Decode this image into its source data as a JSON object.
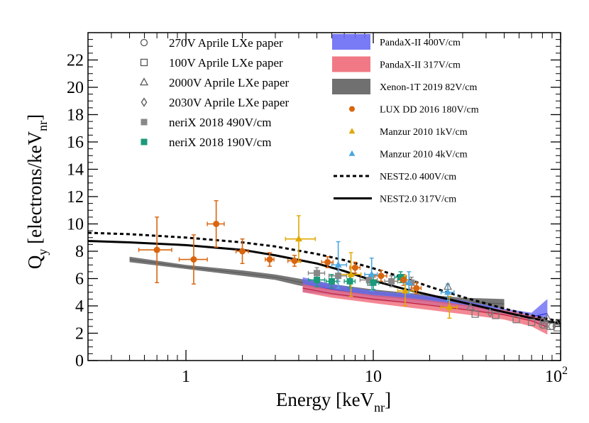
{
  "chart_data": {
    "type": "scatter",
    "x_scale": "log",
    "xlim": [
      0.3,
      100
    ],
    "ylim": [
      0,
      24
    ],
    "x_ticks": [
      {
        "value": 1,
        "label": "1"
      },
      {
        "value": 10,
        "label": "10"
      },
      {
        "value": 100,
        "label": "10",
        "sup": "2"
      }
    ],
    "y_ticks": [
      0,
      2,
      4,
      6,
      8,
      10,
      12,
      14,
      16,
      18,
      20,
      22
    ],
    "xlabel": {
      "main": "Energy [keV",
      "sub": "nr",
      "close": "]"
    },
    "ylabel": {
      "main": "Q",
      "sub1": "y",
      "mid": " [electrons/keV",
      "sub2": "nr",
      "close": "]"
    },
    "colors": {
      "luxdd": "#d9650f",
      "manzur1": "#e0a800",
      "manzur4": "#4aa6e0",
      "nerix490": "#888888",
      "nerix190": "#1a9a7a",
      "pandax400": "#6a6cf5",
      "pandax317": "#f06a78",
      "xenon1t": "#707070",
      "aprile": "#777777",
      "nest": "#000000"
    },
    "series": [
      {
        "key": "aprile270",
        "name": "270V Aprile LXe paper",
        "marker": "open-circle",
        "points": [
          [
            80,
            2.6
          ],
          [
            90,
            2.5
          ]
        ]
      },
      {
        "key": "aprile100",
        "name": "100V Aprile LXe paper",
        "marker": "open-square",
        "points": [
          [
            35,
            3.4
          ],
          [
            45,
            3.3
          ],
          [
            58,
            3.0
          ],
          [
            70,
            2.8
          ],
          [
            82,
            2.6
          ],
          [
            96,
            2.4
          ],
          [
            88,
            2.5
          ]
        ]
      },
      {
        "key": "aprile2000",
        "name": "2000V Aprile LXe paper",
        "marker": "open-triangle",
        "points": [
          [
            25,
            5.4
          ],
          [
            33,
            3.9
          ],
          [
            85,
            3.1
          ],
          [
            95,
            2.7
          ]
        ]
      },
      {
        "key": "aprile2030",
        "name": "2030V Aprile LXe paper",
        "marker": "open-diamond",
        "points": [
          [
            42,
            3.5
          ],
          [
            80,
            2.9
          ]
        ]
      },
      {
        "key": "nerix490",
        "name": "neriX 2018 490V/cm",
        "marker": "filled-square",
        "points": [
          [
            5.0,
            6.4,
            4.5,
            5.5,
            0.4
          ],
          [
            6.5,
            6.2,
            5.8,
            7.2,
            0.4
          ],
          [
            9.5,
            5.9,
            8.5,
            10.5,
            0.4
          ],
          [
            12.5,
            5.8,
            11.5,
            13.5,
            0.4
          ],
          [
            16.0,
            5.7,
            15.0,
            17.0,
            0.4
          ]
        ]
      },
      {
        "key": "nerix190",
        "name": "neriX 2018 190V/cm",
        "marker": "filled-square",
        "points": [
          [
            5.0,
            5.9,
            4.5,
            5.5,
            0.5
          ],
          [
            6.0,
            5.8,
            5.6,
            6.4,
            0.5
          ],
          [
            7.5,
            5.8,
            7.0,
            8.0,
            0.5
          ],
          [
            10.0,
            5.7,
            9.3,
            10.7,
            0.5
          ],
          [
            14.0,
            6.1,
            13.0,
            15.0,
            0.4
          ]
        ]
      },
      {
        "key": "luxdd",
        "name": "LUX DD 2016 180V/cm",
        "marker": "filled-circle",
        "points": [
          [
            0.7,
            8.1,
            0.56,
            0.84,
            2.4
          ],
          [
            1.1,
            7.4,
            0.92,
            1.3,
            1.8
          ],
          [
            1.45,
            10.0,
            1.3,
            1.6,
            1.7
          ],
          [
            2.0,
            8.0,
            1.85,
            2.15,
            0.9
          ],
          [
            2.8,
            7.4,
            2.65,
            2.95,
            0.5
          ],
          [
            3.8,
            7.3,
            3.5,
            4.1,
            0.4
          ],
          [
            5.7,
            7.2,
            5.3,
            6.1,
            0.4
          ],
          [
            8.0,
            6.8,
            7.5,
            8.5,
            0.4
          ],
          [
            11.0,
            6.2,
            10.2,
            11.8,
            0.4
          ],
          [
            14.5,
            5.9,
            13.5,
            15.5,
            0.4
          ],
          [
            17.0,
            5.3,
            16.0,
            18.0,
            0.4
          ]
        ]
      },
      {
        "key": "manzur1",
        "name": "Manzur 2010 1kV/cm",
        "marker": "filled-triangle",
        "points": [
          [
            4.0,
            8.9,
            3.4,
            4.9,
            1.7
          ],
          [
            7.6,
            6.3,
            6.6,
            8.6,
            1.6
          ],
          [
            14.8,
            5.1,
            13.5,
            16.5,
            1.1
          ],
          [
            25.5,
            3.9,
            23.0,
            28.0,
            0.8
          ]
        ]
      },
      {
        "key": "manzur4",
        "name": "Manzur 2010 4kV/cm",
        "marker": "filled-triangle",
        "points": [
          [
            6.5,
            7.0,
            6.0,
            7.2,
            1.7
          ],
          [
            9.8,
            6.3,
            9.0,
            10.5,
            1.2
          ],
          [
            15.5,
            5.7,
            14.5,
            16.5,
            0.8
          ],
          [
            25.0,
            5.0,
            23.0,
            27.0,
            0.6
          ]
        ]
      }
    ],
    "bands": [
      {
        "key": "xenon1t",
        "name": "Xenon-1T 2019 82V/cm",
        "upper": [
          [
            0.5,
            7.6
          ],
          [
            1,
            7.0
          ],
          [
            2,
            6.6
          ],
          [
            3,
            6.3
          ],
          [
            4,
            6.0
          ],
          [
            6,
            5.6
          ],
          [
            10,
            5.2
          ],
          [
            20,
            4.8
          ],
          [
            30,
            4.6
          ],
          [
            50,
            4.5
          ]
        ],
        "lower": [
          [
            0.5,
            7.2
          ],
          [
            1,
            6.7
          ],
          [
            2,
            6.2
          ],
          [
            3,
            5.9
          ],
          [
            4,
            5.5
          ],
          [
            6,
            5.1
          ],
          [
            10,
            4.7
          ],
          [
            20,
            4.3
          ],
          [
            30,
            4.0
          ],
          [
            50,
            3.8
          ]
        ]
      },
      {
        "key": "pandax400",
        "name": "PandaX-II 400V/cm",
        "upper": [
          [
            4.2,
            6.1
          ],
          [
            6,
            5.6
          ],
          [
            10,
            5.1
          ],
          [
            15,
            4.9
          ],
          [
            20,
            4.7
          ],
          [
            30,
            4.4
          ],
          [
            50,
            3.8
          ],
          [
            70,
            3.5
          ],
          [
            85,
            4.5
          ]
        ],
        "lower": [
          [
            4.2,
            5.0
          ],
          [
            6,
            4.8
          ],
          [
            10,
            4.4
          ],
          [
            15,
            4.2
          ],
          [
            20,
            4.0
          ],
          [
            30,
            3.7
          ],
          [
            50,
            3.3
          ],
          [
            70,
            2.9
          ],
          [
            85,
            2.4
          ]
        ]
      },
      {
        "key": "pandax317",
        "name": "PandaX-II 317V/cm",
        "upper": [
          [
            4.2,
            5.6
          ],
          [
            6,
            5.2
          ],
          [
            10,
            4.8
          ],
          [
            15,
            4.6
          ],
          [
            20,
            4.4
          ],
          [
            30,
            4.1
          ],
          [
            50,
            3.7
          ],
          [
            70,
            3.3
          ],
          [
            85,
            3.0
          ]
        ],
        "lower": [
          [
            4.2,
            5.0
          ],
          [
            6,
            4.6
          ],
          [
            10,
            4.2
          ],
          [
            15,
            3.9
          ],
          [
            20,
            3.7
          ],
          [
            30,
            3.4
          ],
          [
            50,
            3.0
          ],
          [
            70,
            2.5
          ],
          [
            85,
            1.9
          ]
        ]
      }
    ],
    "lines": [
      {
        "key": "nest400",
        "name": "NEST2.0 400V/cm",
        "style": "dotted",
        "points": [
          [
            0.3,
            9.35
          ],
          [
            0.5,
            9.25
          ],
          [
            1,
            9.0
          ],
          [
            2,
            8.65
          ],
          [
            3,
            8.35
          ],
          [
            5,
            7.8
          ],
          [
            7,
            7.35
          ],
          [
            10,
            6.75
          ],
          [
            15,
            6.0
          ],
          [
            20,
            5.4
          ],
          [
            30,
            4.65
          ],
          [
            50,
            3.8
          ],
          [
            70,
            3.3
          ],
          [
            100,
            2.85
          ]
        ]
      },
      {
        "key": "nest317",
        "name": "NEST2.0 317V/cm",
        "style": "solid",
        "points": [
          [
            0.3,
            8.75
          ],
          [
            0.5,
            8.65
          ],
          [
            1,
            8.45
          ],
          [
            2,
            8.1
          ],
          [
            3,
            7.7
          ],
          [
            5,
            7.1
          ],
          [
            7,
            6.55
          ],
          [
            10,
            5.85
          ],
          [
            15,
            5.2
          ],
          [
            20,
            4.8
          ],
          [
            30,
            4.25
          ],
          [
            50,
            3.55
          ],
          [
            70,
            3.1
          ],
          [
            100,
            2.7
          ]
        ]
      }
    ],
    "legend_left": [
      {
        "label": "270V Aprile LXe paper",
        "marker": "open-circle",
        "color": "#555555"
      },
      {
        "label": "100V Aprile LXe paper",
        "marker": "open-square",
        "color": "#555555"
      },
      {
        "label": "2000V Aprile LXe paper",
        "marker": "open-triangle",
        "color": "#555555"
      },
      {
        "label": "2030V Aprile LXe paper",
        "marker": "open-diamond",
        "color": "#555555"
      },
      {
        "label": "neriX 2018 490V/cm",
        "marker": "filled-square",
        "color": "#888888"
      },
      {
        "label": "neriX 2018 190V/cm",
        "marker": "filled-square",
        "color": "#1a9a7a"
      }
    ],
    "legend_right": [
      {
        "label": "PandaX-II 400V/cm",
        "marker": "box",
        "color": "#6a6cf5"
      },
      {
        "label": "PandaX-II 317V/cm",
        "marker": "box",
        "color": "#f06a78"
      },
      {
        "label": "Xenon-1T 2019 82V/cm",
        "marker": "box",
        "color": "#707070"
      },
      {
        "label": "LUX DD 2016 180V/cm",
        "marker": "filled-circle",
        "color": "#d9650f"
      },
      {
        "label": "Manzur 2010 1kV/cm",
        "marker": "filled-triangle",
        "color": "#e0a800"
      },
      {
        "label": "Manzur 2010 4kV/cm",
        "marker": "filled-triangle",
        "color": "#4aa6e0"
      },
      {
        "label": "NEST2.0 400V/cm",
        "marker": "dotted-line",
        "color": "#000000"
      },
      {
        "label": "NEST2.0 317V/cm",
        "marker": "solid-line",
        "color": "#000000"
      }
    ]
  }
}
